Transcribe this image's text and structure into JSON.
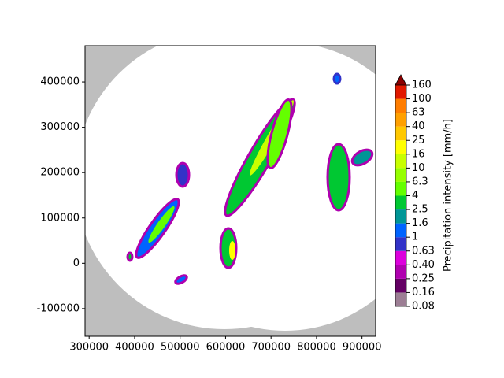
{
  "chart_data": {
    "type": "image",
    "xlim": [
      291000,
      930000
    ],
    "ylim": [
      -161000,
      480000
    ],
    "xticks": [
      300000,
      400000,
      500000,
      600000,
      700000,
      800000,
      900000
    ],
    "yticks": [
      -100000,
      0,
      100000,
      200000,
      300000,
      400000
    ],
    "colorbar": {
      "label": "Precipitation intensity [mm/h]",
      "ticks": [
        0.08,
        0.16,
        0.25,
        {
          "value": 0.4,
          "label": "0.40"
        },
        0.63,
        1,
        1.6,
        2.5,
        4,
        6.3,
        10,
        16,
        25,
        40,
        63,
        100,
        160
      ],
      "colors": [
        "#9c7e94",
        "#640064",
        "#af00af",
        "#dc00dc",
        "#3232c8",
        "#0064ff",
        "#009696",
        "#00c832",
        "#64ff00",
        "#96ff00",
        "#c8ff00",
        "#ffff00",
        "#ffc800",
        "#ffa000",
        "#ff7d00",
        "#e11900"
      ],
      "extend_color": "#8b0000"
    }
  }
}
